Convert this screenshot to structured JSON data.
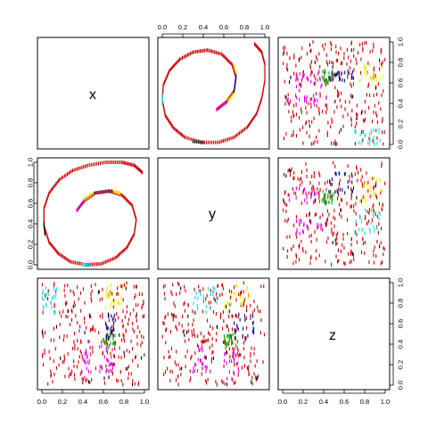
{
  "chart_data": {
    "type": "scatter",
    "kind": "scatterplot-matrix",
    "variables": [
      "x",
      "y",
      "z"
    ],
    "axis_range": [
      0,
      1
    ],
    "tick_values": [
      0,
      0.2,
      0.4,
      0.6,
      0.8,
      1
    ],
    "tick_labels": [
      "0.0",
      "0.2",
      "0.4",
      "0.6",
      "0.8",
      "1.0"
    ],
    "point_colors": {
      "red": "#cc0000",
      "black": "#000000",
      "blue": "#00008b",
      "cyan": "#00e5ee",
      "magenta": "#e000e0",
      "green": "#00b000",
      "yellow": "#eeee00"
    },
    "x_y_spiral": {
      "outer_points": [
        [
          0.98,
          0.9
        ],
        [
          0.9,
          0.97
        ],
        [
          0.78,
          1.0
        ],
        [
          0.62,
          1.0
        ],
        [
          0.45,
          0.97
        ],
        [
          0.3,
          0.92
        ],
        [
          0.17,
          0.83
        ],
        [
          0.07,
          0.7
        ],
        [
          0.02,
          0.55
        ],
        [
          0.02,
          0.38
        ],
        [
          0.07,
          0.22
        ],
        [
          0.16,
          0.11
        ],
        [
          0.28,
          0.03
        ],
        [
          0.43,
          0.0
        ],
        [
          0.58,
          0.01
        ],
        [
          0.72,
          0.07
        ],
        [
          0.83,
          0.17
        ],
        [
          0.9,
          0.3
        ],
        [
          0.92,
          0.44
        ],
        [
          0.88,
          0.58
        ],
        [
          0.78,
          0.68
        ],
        [
          0.65,
          0.72
        ],
        [
          0.52,
          0.7
        ],
        [
          0.42,
          0.63
        ],
        [
          0.34,
          0.53
        ]
      ],
      "colored_segments": [
        {
          "color": "magenta",
          "from": [
            0.34,
            0.53
          ],
          "to": [
            0.42,
            0.64
          ]
        },
        {
          "color": "yellow",
          "from": [
            0.42,
            0.64
          ],
          "to": [
            0.5,
            0.7
          ]
        },
        {
          "color": "blue",
          "from": [
            0.52,
            0.7
          ],
          "to": [
            0.68,
            0.72
          ]
        },
        {
          "color": "yellow",
          "from": [
            0.7,
            0.72
          ],
          "to": [
            0.76,
            0.7
          ]
        },
        {
          "color": "cyan",
          "from": [
            0.4,
            0.0
          ],
          "to": [
            0.48,
            0.0
          ]
        },
        {
          "color": "black",
          "from": [
            0.02,
            0.4
          ],
          "to": [
            0.03,
            0.3
          ]
        }
      ]
    },
    "z_clusters": [
      {
        "color": "yellow",
        "x": [
          0.62,
          0.8
        ],
        "z": [
          0.75,
          1.0
        ],
        "y": [
          0.6,
          0.85
        ]
      },
      {
        "color": "cyan",
        "x": [
          0.0,
          0.15
        ],
        "z": [
          0.7,
          0.95
        ],
        "y": [
          0.3,
          0.55
        ]
      },
      {
        "color": "magenta",
        "x": [
          0.38,
          0.48
        ],
        "z": [
          0.05,
          0.45
        ],
        "y": [
          0.6,
          0.75
        ]
      },
      {
        "color": "magenta",
        "x": [
          0.55,
          0.7
        ],
        "z": [
          0.05,
          0.4
        ],
        "y": [
          0.3,
          0.45
        ]
      },
      {
        "color": "green",
        "x": [
          0.6,
          0.72
        ],
        "z": [
          0.35,
          0.5
        ],
        "y": [
          0.6,
          0.72
        ]
      },
      {
        "color": "blue",
        "x": [
          0.62,
          0.72
        ],
        "z": [
          0.45,
          0.7
        ],
        "y": [
          0.7,
          0.9
        ]
      },
      {
        "color": "black",
        "x": [
          0.0,
          1.0
        ],
        "z": [
          0.0,
          1.0
        ],
        "y": [
          0.0,
          1.0
        ]
      }
    ]
  }
}
